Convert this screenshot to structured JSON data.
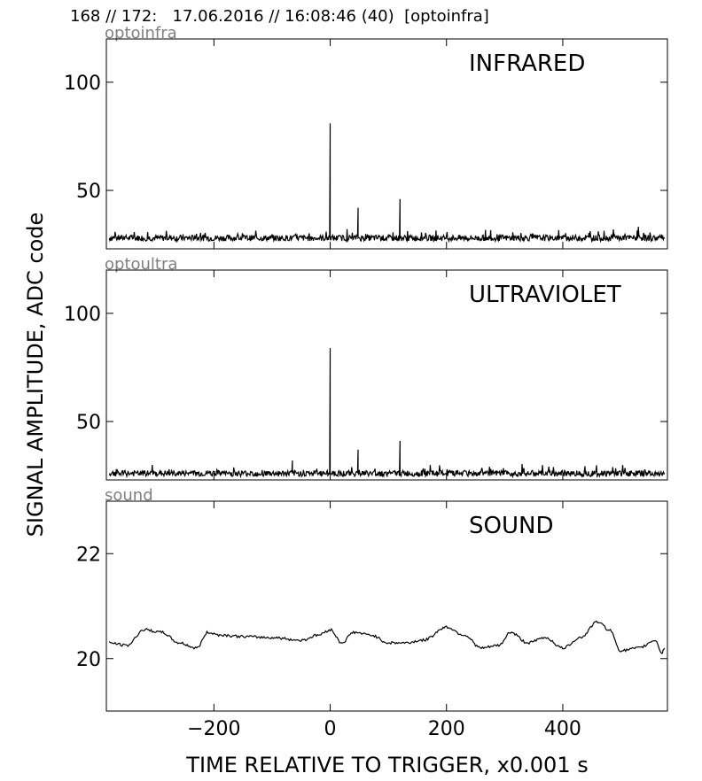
{
  "header": "168 // 172:   17.06.2016 // 16:08:46 (40)  [optoinfra]",
  "ylabel": "SIGNAL AMPLITUDE,  ADC code",
  "xlabel": "TIME RELATIVE TO TRIGGER,   x0.001 s",
  "chart_data": [
    {
      "type": "line",
      "tag": "optoinfra",
      "title": "INFRARED",
      "xlim": [
        -385,
        580
      ],
      "ylim": [
        23,
        120
      ],
      "yticks": [
        50,
        100
      ],
      "baseline": 28,
      "noise": 2,
      "spikes": [
        {
          "x": 0,
          "y": 81
        },
        {
          "x": 48,
          "y": 42
        },
        {
          "x": 120,
          "y": 46
        }
      ]
    },
    {
      "type": "line",
      "tag": "optoultra",
      "title": "ULTRAVIOLET",
      "xlim": [
        -385,
        580
      ],
      "ylim": [
        23,
        120
      ],
      "yticks": [
        50,
        100
      ],
      "baseline": 26,
      "noise": 2,
      "spikes": [
        {
          "x": -65,
          "y": 32
        },
        {
          "x": 0,
          "y": 84
        },
        {
          "x": 48,
          "y": 37
        },
        {
          "x": 120,
          "y": 41
        }
      ]
    },
    {
      "type": "line",
      "tag": "sound",
      "title": "SOUND",
      "xlim": [
        -385,
        580
      ],
      "ylim": [
        19,
        23
      ],
      "yticks": [
        20,
        22
      ],
      "xticks": [
        -200,
        0,
        200,
        400
      ],
      "x": [
        -380,
        -350,
        -320,
        -290,
        -260,
        -230,
        -210,
        -190,
        -150,
        -100,
        -50,
        -20,
        0,
        20,
        40,
        70,
        100,
        130,
        160,
        200,
        230,
        260,
        290,
        310,
        340,
        370,
        400,
        430,
        460,
        480,
        500,
        530,
        560,
        570,
        575
      ],
      "y": [
        20.3,
        20.25,
        20.55,
        20.5,
        20.3,
        20.2,
        20.5,
        20.45,
        20.42,
        20.4,
        20.35,
        20.45,
        20.55,
        20.3,
        20.5,
        20.45,
        20.3,
        20.3,
        20.35,
        20.6,
        20.45,
        20.2,
        20.25,
        20.5,
        20.3,
        20.4,
        20.2,
        20.4,
        20.7,
        20.55,
        20.15,
        20.2,
        20.35,
        20.1,
        20.2
      ]
    }
  ]
}
